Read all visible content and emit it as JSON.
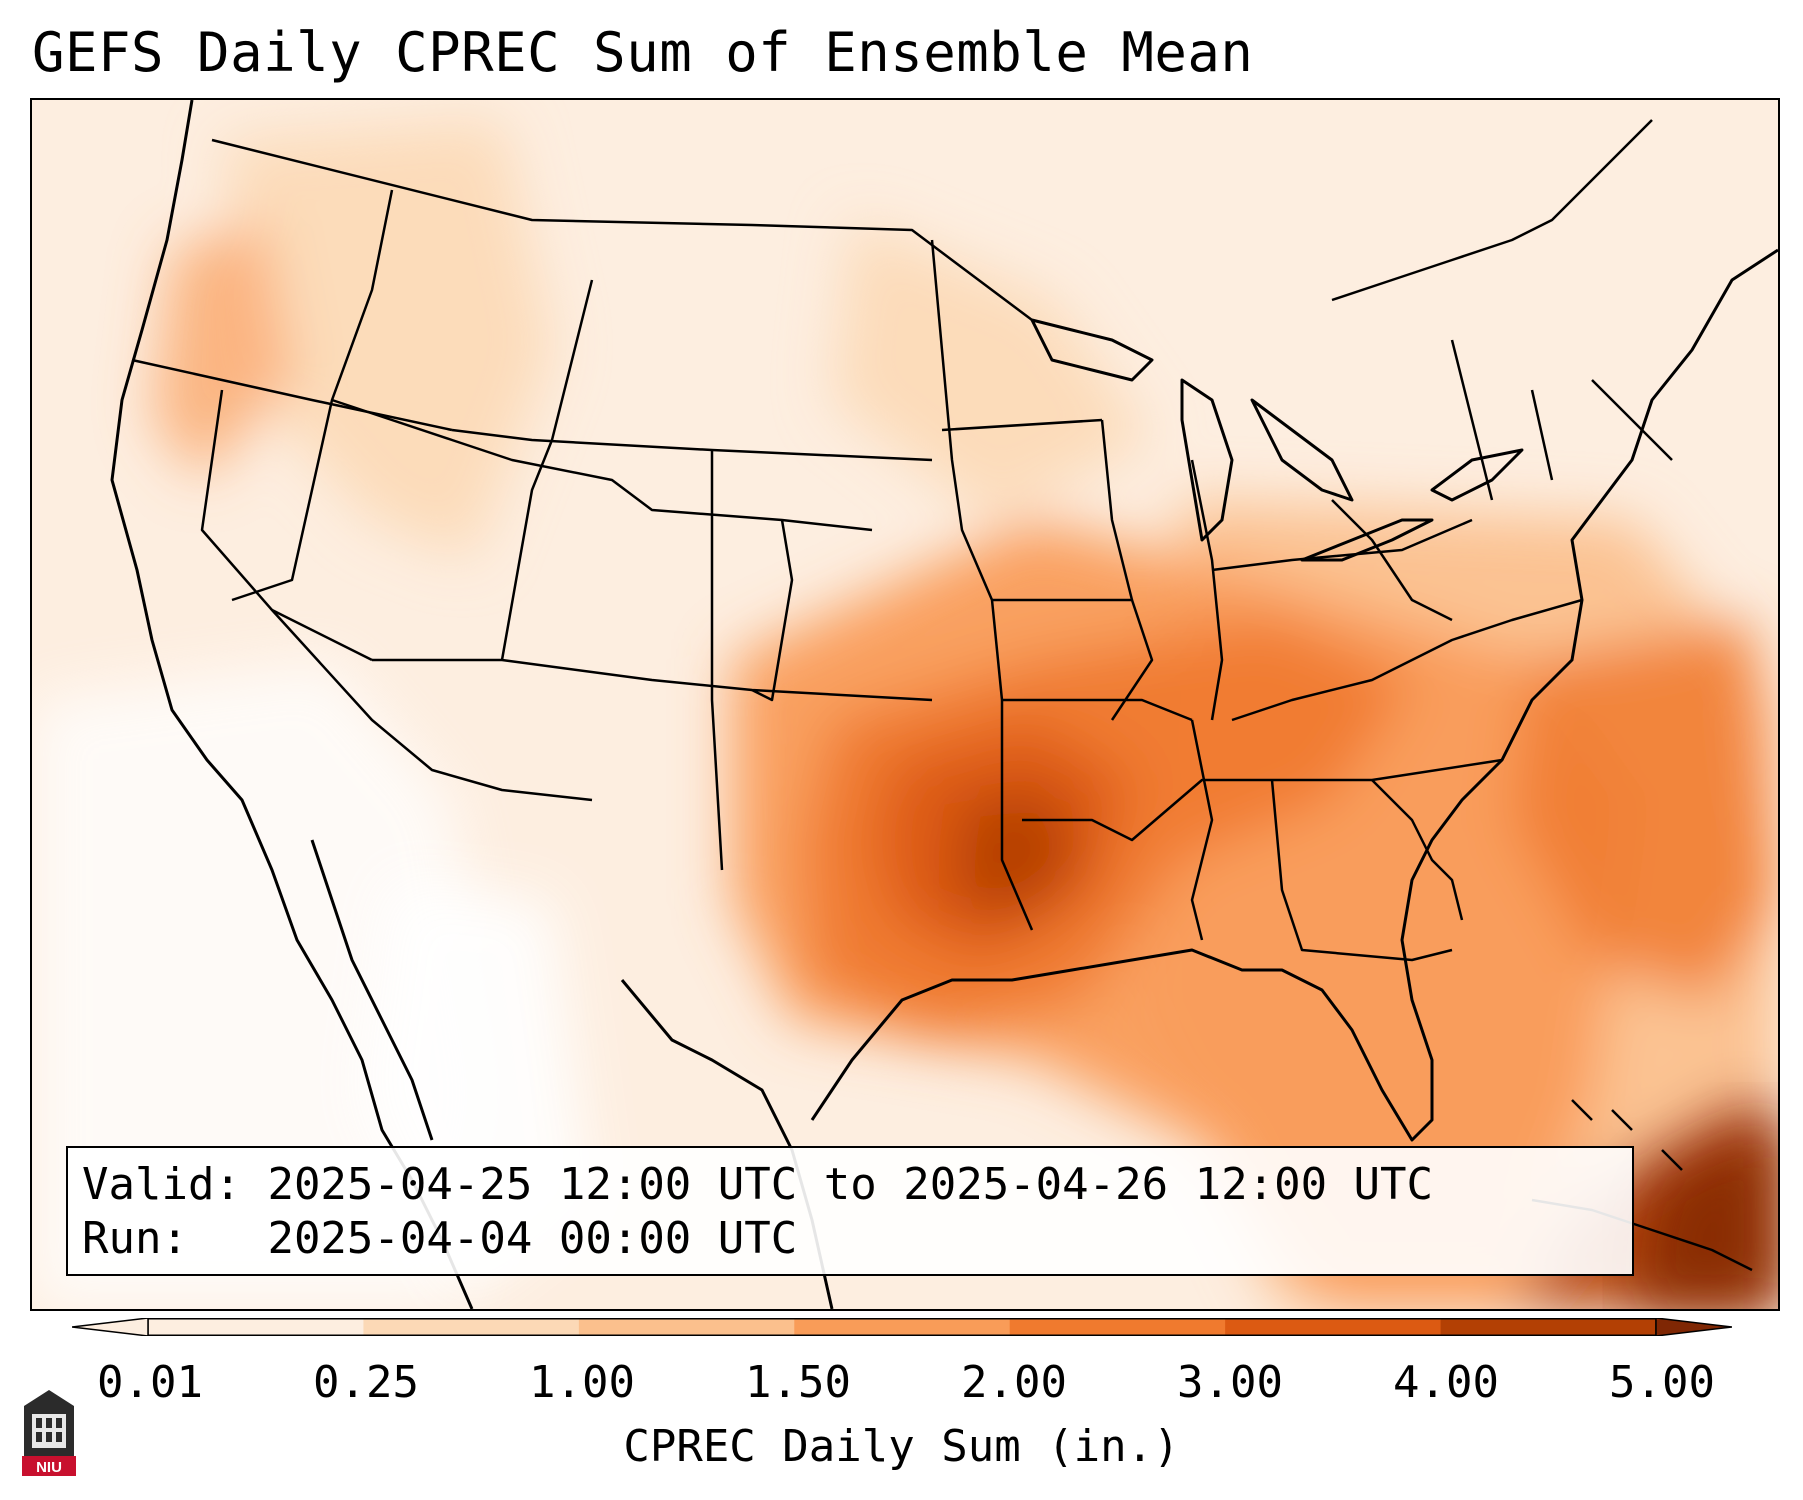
{
  "title": "GEFS Daily CPREC Sum of Ensemble Mean",
  "info_box": {
    "valid_label": "Valid:",
    "valid_text": "2025-04-25 12:00 UTC to 2025-04-26 12:00 UTC",
    "run_label": "Run:",
    "run_text": "2025-04-04 00:00 UTC"
  },
  "colorbar": {
    "label": "CPREC Daily Sum (in.)",
    "ticks": [
      "0.01",
      "0.25",
      "1.00",
      "1.50",
      "2.00",
      "3.00",
      "4.00",
      "5.00"
    ],
    "colors": [
      "#fdeee0",
      "#fcd9b6",
      "#fbc08d",
      "#f99c58",
      "#f07a2e",
      "#dc5a12",
      "#b34004",
      "#7f2704"
    ]
  },
  "logo": {
    "text": "NIU"
  }
}
